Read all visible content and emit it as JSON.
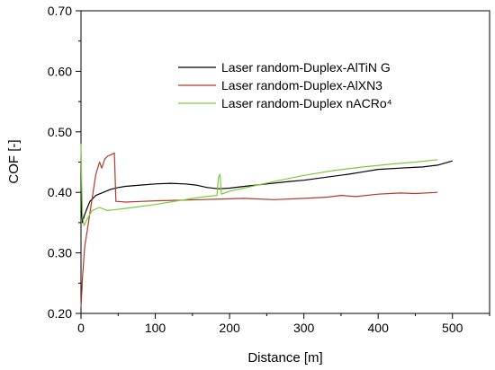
{
  "chart_data": {
    "type": "line",
    "title": "",
    "xlabel": "Distance [m]",
    "ylabel": "COF [-]",
    "xlim": [
      0,
      550
    ],
    "ylim": [
      0.2,
      0.7
    ],
    "x_ticks": [
      0,
      100,
      200,
      300,
      400,
      500
    ],
    "x_tick_labels": [
      "0",
      "100",
      "200",
      "300",
      "400",
      "500"
    ],
    "y_ticks": [
      0.2,
      0.3,
      0.4,
      0.5,
      0.6,
      0.7
    ],
    "y_tick_labels": [
      "0.20",
      "0.30",
      "0.40",
      "0.50",
      "0.60",
      "0.70"
    ],
    "grid": false,
    "legend_position": "top-right",
    "series": [
      {
        "name": "Laser random-Duplex-AlTiN G",
        "color": "#000000",
        "x": [
          0,
          1,
          2,
          4,
          7,
          12,
          20,
          30,
          40,
          50,
          60,
          80,
          100,
          120,
          140,
          155,
          170,
          185,
          200,
          220,
          250,
          280,
          300,
          330,
          360,
          380,
          400,
          430,
          460,
          480,
          500
        ],
        "y": [
          0.4,
          0.37,
          0.35,
          0.36,
          0.37,
          0.385,
          0.395,
          0.4,
          0.405,
          0.408,
          0.41,
          0.412,
          0.414,
          0.415,
          0.414,
          0.412,
          0.408,
          0.406,
          0.407,
          0.41,
          0.414,
          0.418,
          0.42,
          0.425,
          0.43,
          0.434,
          0.438,
          0.44,
          0.442,
          0.445,
          0.452
        ]
      },
      {
        "name": "Laser random-Duplex-AlXN3",
        "color": "#b23a2a",
        "x": [
          0,
          2,
          5,
          10,
          15,
          20,
          25,
          28,
          32,
          36,
          40,
          45,
          47,
          50,
          60,
          80,
          100,
          130,
          160,
          190,
          220,
          260,
          300,
          330,
          350,
          370,
          400,
          430,
          450,
          480
        ],
        "y": [
          0.21,
          0.26,
          0.31,
          0.35,
          0.39,
          0.43,
          0.45,
          0.44,
          0.455,
          0.46,
          0.462,
          0.465,
          0.385,
          0.385,
          0.384,
          0.385,
          0.386,
          0.387,
          0.388,
          0.389,
          0.39,
          0.388,
          0.39,
          0.392,
          0.395,
          0.393,
          0.397,
          0.399,
          0.398,
          0.4
        ]
      },
      {
        "name": "Laser random-Duplex nACRo⁴",
        "color": "#7ccc3a",
        "x": [
          0,
          1,
          2,
          4,
          8,
          15,
          25,
          35,
          50,
          70,
          100,
          130,
          160,
          183,
          185,
          187,
          189,
          191,
          200,
          230,
          260,
          300,
          340,
          380,
          420,
          450,
          480
        ],
        "y": [
          0.48,
          0.41,
          0.36,
          0.345,
          0.355,
          0.37,
          0.375,
          0.37,
          0.372,
          0.375,
          0.38,
          0.386,
          0.392,
          0.395,
          0.425,
          0.43,
          0.397,
          0.398,
          0.402,
          0.41,
          0.418,
          0.428,
          0.436,
          0.442,
          0.447,
          0.45,
          0.454
        ]
      }
    ]
  }
}
